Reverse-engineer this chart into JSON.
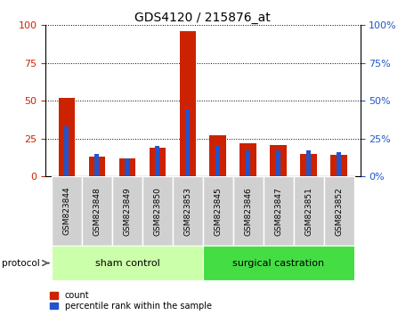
{
  "title": "GDS4120 / 215876_at",
  "samples": [
    "GSM823844",
    "GSM823848",
    "GSM823849",
    "GSM823850",
    "GSM823853",
    "GSM823845",
    "GSM823846",
    "GSM823847",
    "GSM823851",
    "GSM823852"
  ],
  "count": [
    52,
    13,
    12,
    19,
    96,
    27,
    22,
    21,
    15,
    14
  ],
  "percentile": [
    33,
    15,
    12,
    20,
    44,
    21,
    17,
    17,
    17,
    16
  ],
  "red_color": "#cc2200",
  "blue_color": "#2255cc",
  "red_bar_width": 0.55,
  "blue_bar_width": 0.15,
  "ylim": [
    0,
    100
  ],
  "yticks": [
    0,
    25,
    50,
    75,
    100
  ],
  "grid_style": "dotted",
  "groups": [
    {
      "label": "sham control",
      "start": 0,
      "end": 5,
      "color": "#ccffaa"
    },
    {
      "label": "surgical castration",
      "start": 5,
      "end": 10,
      "color": "#44dd44"
    }
  ],
  "protocol_label": "protocol",
  "legend_count": "count",
  "legend_percentile": "percentile rank within the sample",
  "title_fontsize": 10,
  "tick_fontsize": 6.5,
  "axis_label_color_left": "#cc2200",
  "axis_label_color_right": "#2255cc",
  "xtick_bg_color": "#d0d0d0",
  "xtick_border_color": "#ffffff"
}
